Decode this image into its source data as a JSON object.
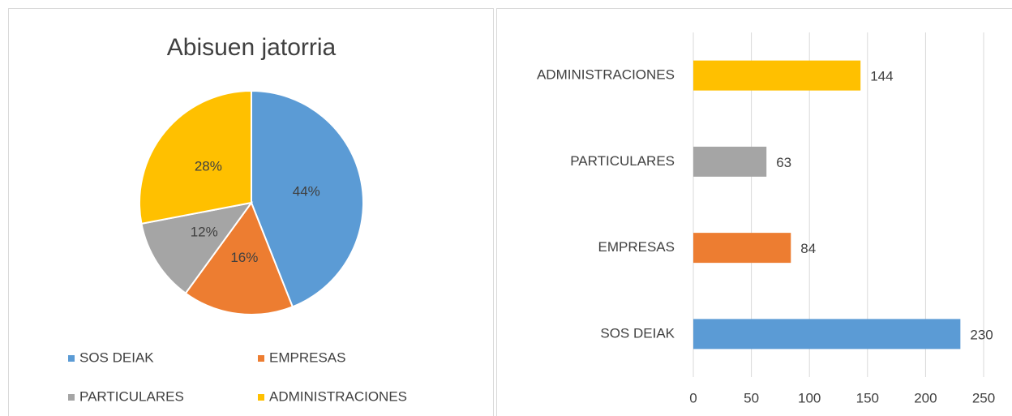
{
  "chart_data": [
    {
      "type": "pie",
      "title": "Abisuen jatorria",
      "categories": [
        "SOS DEIAK",
        "EMPRESAS",
        "PARTICULARES",
        "ADMINISTRACIONES"
      ],
      "values": [
        44,
        16,
        12,
        28
      ],
      "value_labels": [
        "44%",
        "16%",
        "12%",
        "28%"
      ],
      "colors": [
        "#5b9bd5",
        "#ed7d31",
        "#a5a5a5",
        "#ffc000"
      ],
      "legend": "bottom"
    },
    {
      "type": "barh",
      "categories": [
        "SOS DEIAK",
        "EMPRESAS",
        "PARTICULARES",
        "ADMINISTRACIONES"
      ],
      "values": [
        230,
        84,
        63,
        144
      ],
      "colors": [
        "#5b9bd5",
        "#ed7d31",
        "#a5a5a5",
        "#ffc000"
      ],
      "xlim": [
        0,
        250
      ],
      "xticks": [
        0,
        50,
        100,
        150,
        200,
        250
      ],
      "grid": true
    }
  ]
}
